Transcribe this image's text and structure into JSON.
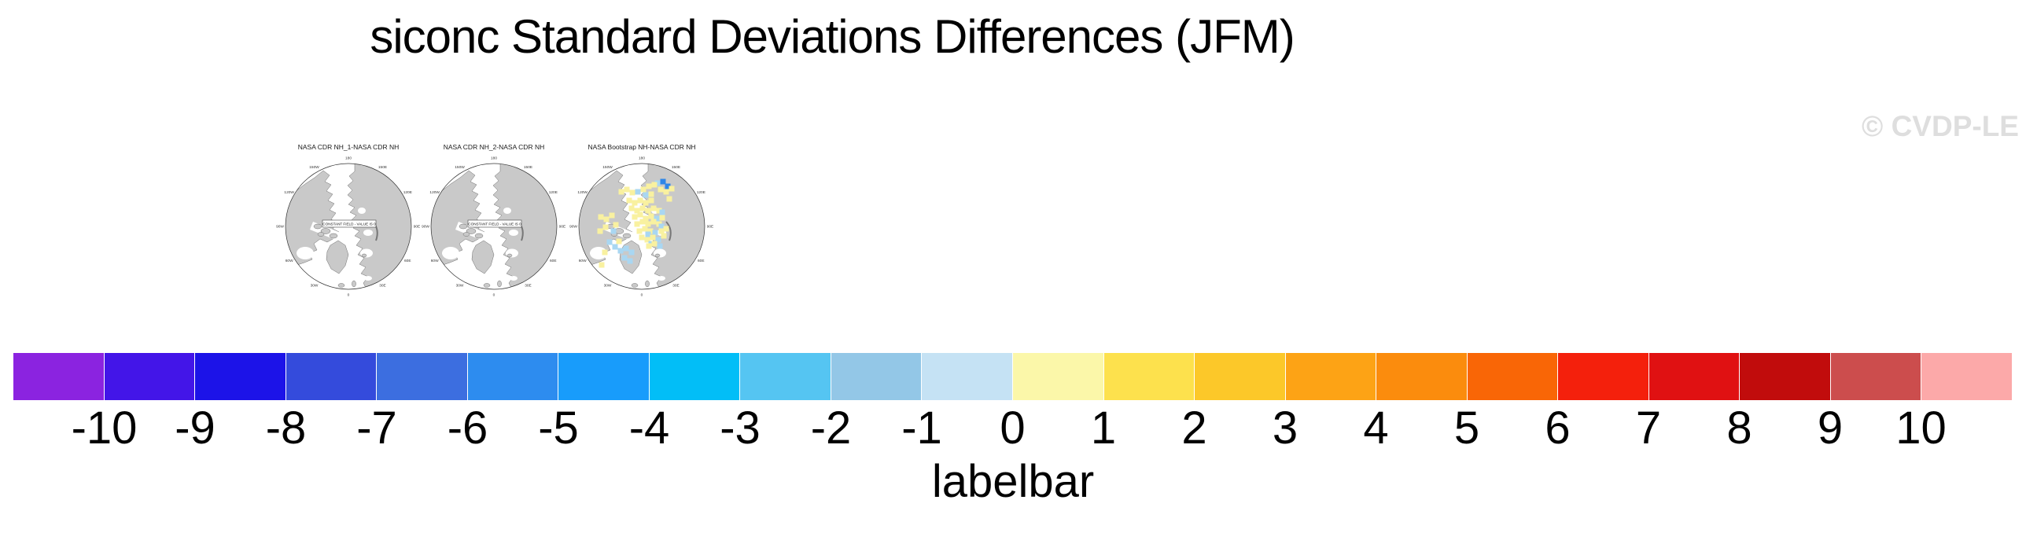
{
  "figure": {
    "title": "siconc Standard Deviations Differences (JFM)",
    "watermark": "© CVDP-LE"
  },
  "panels": [
    {
      "title": "NASA CDR NH_1-NASA CDR NH",
      "note": "CONSTANT FIELD - VALUE IS 0",
      "cells": []
    },
    {
      "title": "NASA CDR NH_2-NASA CDR NH",
      "note": "CONSTANT FIELD - VALUE IS 0",
      "cells": []
    },
    {
      "title": "NASA Bootstrap NH-NASA CDR NH",
      "note": "",
      "cells": [
        [
          27,
          -57,
          "d"
        ],
        [
          33,
          -51,
          "d"
        ],
        [
          20,
          -55,
          "b"
        ],
        [
          -26,
          -44,
          "y"
        ],
        [
          -19,
          -47,
          "y"
        ],
        [
          -12,
          -43,
          "y"
        ],
        [
          2,
          -47,
          "y"
        ],
        [
          9,
          -51,
          "y"
        ],
        [
          16,
          -53,
          "y"
        ],
        [
          24,
          -47,
          "y"
        ],
        [
          31,
          -44,
          "y"
        ],
        [
          38,
          -48,
          "y"
        ],
        [
          12,
          -41,
          "y"
        ],
        [
          -5,
          -44,
          "b"
        ],
        [
          5,
          -40,
          "b"
        ],
        [
          35,
          -35,
          "y"
        ],
        [
          -16,
          -33,
          "y"
        ],
        [
          -9,
          -30,
          "y"
        ],
        [
          -2,
          -33,
          "y"
        ],
        [
          5,
          -30,
          "y"
        ],
        [
          12,
          -33,
          "y"
        ],
        [
          -13,
          -23,
          "y"
        ],
        [
          -6,
          -20,
          "y"
        ],
        [
          1,
          -23,
          "y"
        ],
        [
          8,
          -20,
          "y"
        ],
        [
          15,
          -23,
          "y"
        ],
        [
          22,
          -20,
          "y"
        ],
        [
          26,
          -18,
          "b"
        ],
        [
          -9,
          -12,
          "y"
        ],
        [
          -2,
          -15,
          "y"
        ],
        [
          5,
          -10,
          "y"
        ],
        [
          12,
          -13,
          "y"
        ],
        [
          19,
          -10,
          "b"
        ],
        [
          26,
          -11,
          "y"
        ],
        [
          -6,
          -3,
          "y"
        ],
        [
          1,
          -6,
          "y"
        ],
        [
          8,
          -3,
          "y"
        ],
        [
          15,
          -6,
          "y"
        ],
        [
          22,
          -3,
          "y"
        ],
        [
          25,
          0,
          "b"
        ],
        [
          31,
          3,
          "y"
        ],
        [
          -3,
          6,
          "y"
        ],
        [
          4,
          3,
          "y"
        ],
        [
          11,
          6,
          "y"
        ],
        [
          17,
          8,
          "b"
        ],
        [
          8,
          10,
          "b"
        ],
        [
          25,
          6,
          "y"
        ],
        [
          0,
          14,
          "y"
        ],
        [
          7,
          17,
          "y"
        ],
        [
          14,
          14,
          "y"
        ],
        [
          21,
          17,
          "b"
        ],
        [
          28,
          12,
          "y"
        ],
        [
          12,
          22,
          "b"
        ],
        [
          9,
          25,
          "y"
        ],
        [
          16,
          22,
          "y"
        ],
        [
          23,
          25,
          "b"
        ],
        [
          -52,
          -12,
          "y"
        ],
        [
          -45,
          -9,
          "y"
        ],
        [
          -38,
          -14,
          "y"
        ],
        [
          -46,
          1,
          "y"
        ],
        [
          -53,
          6,
          "y"
        ],
        [
          -33,
          -2,
          "y"
        ],
        [
          -36,
          6,
          "b"
        ],
        [
          -41,
          20,
          "b"
        ],
        [
          -34,
          26,
          "b"
        ],
        [
          -27,
          31,
          "b"
        ],
        [
          -20,
          28,
          "b"
        ],
        [
          -13,
          33,
          "b"
        ],
        [
          -22,
          40,
          "b"
        ],
        [
          -15,
          44,
          "b"
        ],
        [
          -29,
          19,
          "y"
        ],
        [
          -47,
          33,
          "y"
        ],
        [
          -51,
          49,
          "y"
        ]
      ]
    }
  ],
  "ring_labels": [
    [
      "180",
      0
    ],
    [
      "150E",
      30
    ],
    [
      "120E",
      60
    ],
    [
      "90E",
      90
    ],
    [
      "60E",
      120
    ],
    [
      "30E",
      150
    ],
    [
      "0",
      180
    ],
    [
      "30W",
      210
    ],
    [
      "60W",
      240
    ],
    [
      "90W",
      270
    ],
    [
      "120W",
      300
    ],
    [
      "150W",
      330
    ]
  ],
  "labelbar": {
    "caption": "labelbar",
    "ticks": [
      "-10",
      "-9",
      "-8",
      "-7",
      "-6",
      "-5",
      "-4",
      "-3",
      "-2",
      "-1",
      "0",
      "1",
      "2",
      "3",
      "4",
      "5",
      "6",
      "7",
      "8",
      "9",
      "10"
    ],
    "colors": [
      "#8B23E0",
      "#4315E8",
      "#1C13E8",
      "#344BDC",
      "#3C6EE0",
      "#2D8CEF",
      "#189CFB",
      "#02BEF7",
      "#55C5F2",
      "#93C7E7",
      "#C5E2F4",
      "#FBF7A9",
      "#FDE14D",
      "#FCC829",
      "#FDA315",
      "#FB8C0D",
      "#F96606",
      "#F4200C",
      "#E01112",
      "#C10C0C",
      "#CC4D4D",
      "#FCA9A9"
    ]
  },
  "patch_colors": {
    "y": "#F9F1A0",
    "b": "#A9D7F2",
    "d": "#2E86E8"
  },
  "map_colors": {
    "land": "#C9C9C9",
    "coast": "#6E6E6E",
    "circle": "#333333"
  },
  "chart_data": {
    "type": "heatmap",
    "title": "siconc Standard Deviations Differences (JFM)",
    "projection": "north polar stereographic",
    "panels": [
      "NASA CDR NH_1-NASA CDR NH",
      "NASA CDR NH_2-NASA CDR NH",
      "NASA Bootstrap NH-NASA CDR NH"
    ],
    "panel_values": [
      "CONSTANT FIELD - VALUE IS 0",
      "CONSTANT FIELD - VALUE IS 0",
      "scattered differences mostly between -5 and +1 over the Arctic basin"
    ],
    "colorbar_levels": [
      -10,
      -9,
      -8,
      -7,
      -6,
      -5,
      -4,
      -3,
      -2,
      -1,
      0,
      1,
      2,
      3,
      4,
      5,
      6,
      7,
      8,
      9,
      10
    ],
    "colorbar_colors": [
      "#8B23E0",
      "#4315E8",
      "#1C13E8",
      "#344BDC",
      "#3C6EE0",
      "#2D8CEF",
      "#189CFB",
      "#02BEF7",
      "#55C5F2",
      "#93C7E7",
      "#C5E2F4",
      "#FBF7A9",
      "#FDE14D",
      "#FCC829",
      "#FDA315",
      "#FB8C0D",
      "#F96606",
      "#F4200C",
      "#E01112",
      "#C10C0C",
      "#CC4D4D",
      "#FCA9A9"
    ],
    "colorbar_caption": "labelbar",
    "legend_position": "bottom",
    "watermark": "© CVDP-LE"
  }
}
